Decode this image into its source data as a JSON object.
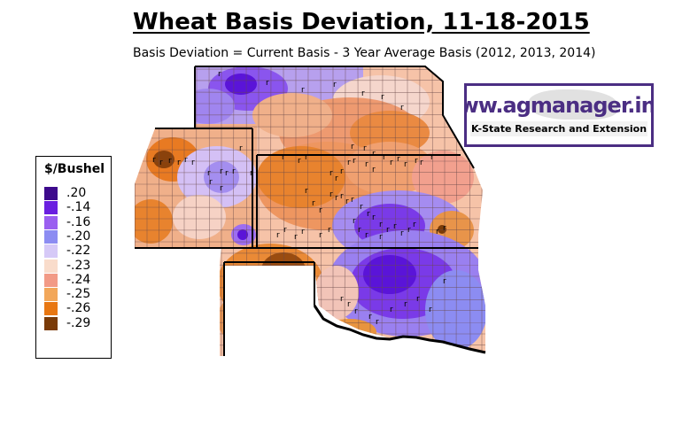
{
  "title": "Wheat Basis Deviation, 11-18-2015",
  "subtitle": "Basis Deviation = Current Basis - 3 Year Average Basis (2012, 2013, 2014)",
  "logo": {
    "url_text": "www.agmanager.info",
    "org_text": "K-State Research and Extension",
    "color": "#4b2e83"
  },
  "legend": {
    "title": "$/Bushel",
    "items": [
      {
        "label": ".20",
        "color": "#3d0a8c"
      },
      {
        "label": "-.14",
        "color": "#6a1fe0"
      },
      {
        "label": "-.16",
        "color": "#9a5ff0"
      },
      {
        "label": "-.20",
        "color": "#8c8cf2"
      },
      {
        "label": "-.22",
        "color": "#d6c9f7"
      },
      {
        "label": "-.23",
        "color": "#f9dccb"
      },
      {
        "label": "-.24",
        "color": "#f29a86"
      },
      {
        "label": "-.25",
        "color": "#f2a75a"
      },
      {
        "label": "-.26",
        "color": "#e87712"
      },
      {
        "label": "-.29",
        "color": "#7a3b08"
      }
    ]
  },
  "map": {
    "region": "Nebraska, Colorado, Kansas, Oklahoma and Texas Panhandle counties",
    "marker_symbol": "r"
  }
}
